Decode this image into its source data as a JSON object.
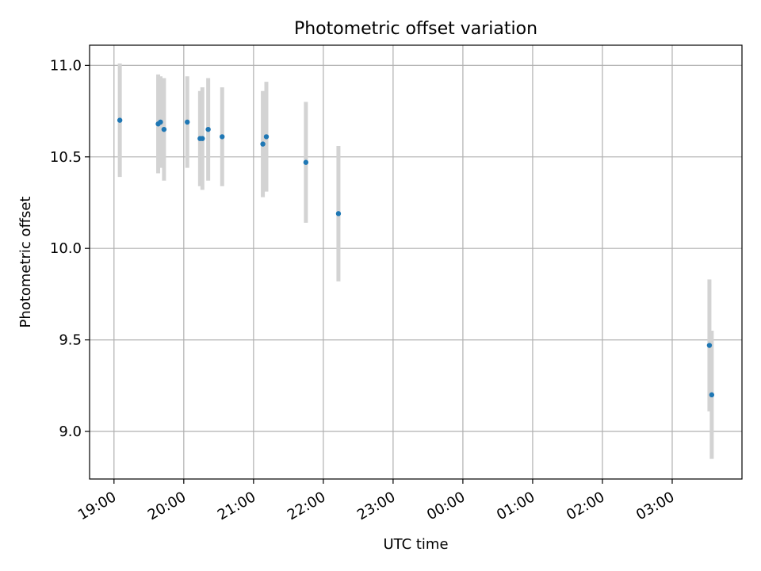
{
  "chart_data": {
    "type": "scatter",
    "title": "Photometric offset variation",
    "xlabel": "UTC time",
    "ylabel": "Photometric offset",
    "x_tick_labels": [
      "19:00",
      "20:00",
      "21:00",
      "22:00",
      "23:00",
      "00:00",
      "01:00",
      "02:00",
      "03:00"
    ],
    "y_tick_labels": [
      "9.0",
      "9.5",
      "10.0",
      "10.5",
      "11.0"
    ],
    "x_ticks": [
      "19:00",
      "20:00",
      "21:00",
      "22:00",
      "23:00",
      "00:00",
      "01:00",
      "02:00",
      "03:00"
    ],
    "y_ticks": [
      9.0,
      9.5,
      10.0,
      10.5,
      11.0
    ],
    "xlim": [
      "18:39",
      "04:00"
    ],
    "ylim": [
      8.74,
      11.11
    ],
    "grid": true,
    "marker_color": "#1f77b4",
    "errorbar_color": "#d3d3d3",
    "series": [
      {
        "points": [
          {
            "x": "19:05",
            "y": 10.7,
            "yerr": 0.31
          },
          {
            "x": "19:38",
            "y": 10.68,
            "yerr": 0.27
          },
          {
            "x": "19:40",
            "y": 10.69,
            "yerr": 0.25
          },
          {
            "x": "19:43",
            "y": 10.65,
            "yerr": 0.28
          },
          {
            "x": "20:03",
            "y": 10.69,
            "yerr": 0.25
          },
          {
            "x": "20:14",
            "y": 10.6,
            "yerr": 0.26
          },
          {
            "x": "20:16",
            "y": 10.6,
            "yerr": 0.28
          },
          {
            "x": "20:21",
            "y": 10.65,
            "yerr": 0.28
          },
          {
            "x": "20:33",
            "y": 10.61,
            "yerr": 0.27
          },
          {
            "x": "21:08",
            "y": 10.57,
            "yerr": 0.29
          },
          {
            "x": "21:11",
            "y": 10.61,
            "yerr": 0.3
          },
          {
            "x": "21:45",
            "y": 10.47,
            "yerr": 0.33
          },
          {
            "x": "22:13",
            "y": 10.19,
            "yerr": 0.37
          },
          {
            "x": "03:32",
            "y": 9.47,
            "yerr": 0.36
          },
          {
            "x": "03:34",
            "y": 9.2,
            "yerr": 0.35
          }
        ]
      }
    ]
  }
}
